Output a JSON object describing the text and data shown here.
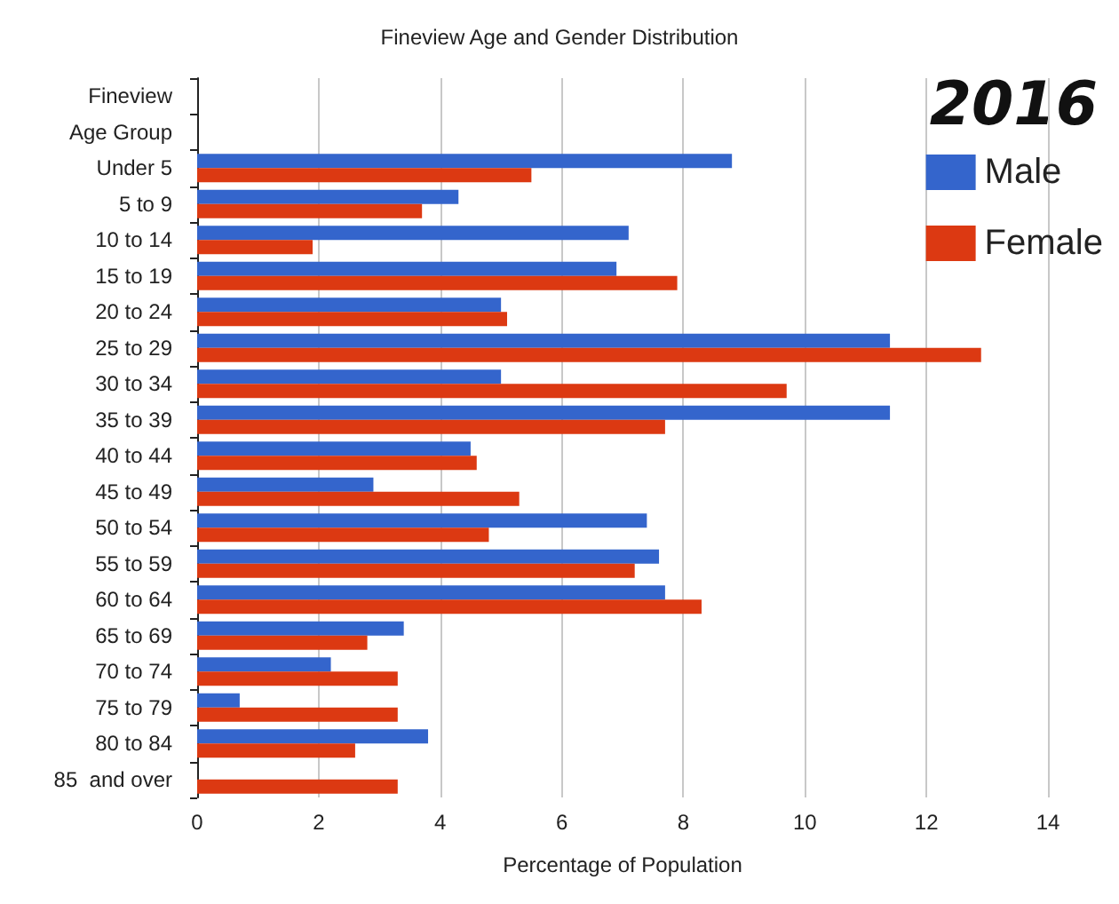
{
  "chart_data": {
    "type": "bar",
    "orientation": "horizontal",
    "title": "Fineview Age and Gender Distribution",
    "xlabel": "Percentage of Population",
    "categories": [
      "Fineview",
      "Age Group",
      "Under 5",
      "5 to 9",
      "10 to 14",
      "15 to 19",
      "20 to 24",
      "25 to 29",
      "30 to 34",
      "35 to 39",
      "40 to 44",
      "45 to 49",
      "50 to 54",
      "55 to 59",
      "60 to 64",
      "65 to 69",
      "70 to 74",
      "75 to 79",
      "80 to 84",
      "85  and over"
    ],
    "series": [
      {
        "name": "Male",
        "color": "#3465cc",
        "values": [
          null,
          null,
          8.8,
          4.3,
          7.1,
          6.9,
          5.0,
          11.4,
          5.0,
          11.4,
          4.5,
          2.9,
          7.4,
          7.6,
          7.7,
          3.4,
          2.2,
          0.7,
          3.8,
          null
        ]
      },
      {
        "name": "Female",
        "color": "#dc3912",
        "values": [
          null,
          null,
          5.5,
          3.7,
          1.9,
          7.9,
          5.1,
          12.9,
          9.7,
          7.7,
          4.6,
          5.3,
          4.8,
          7.2,
          8.3,
          2.8,
          3.3,
          3.3,
          2.6,
          3.3
        ]
      }
    ],
    "xlim": [
      0,
      14
    ],
    "xticks": [
      0,
      2,
      4,
      6,
      8,
      10,
      12,
      14
    ],
    "grid": "x",
    "legend": "top right",
    "annotations": [
      "2016"
    ]
  }
}
